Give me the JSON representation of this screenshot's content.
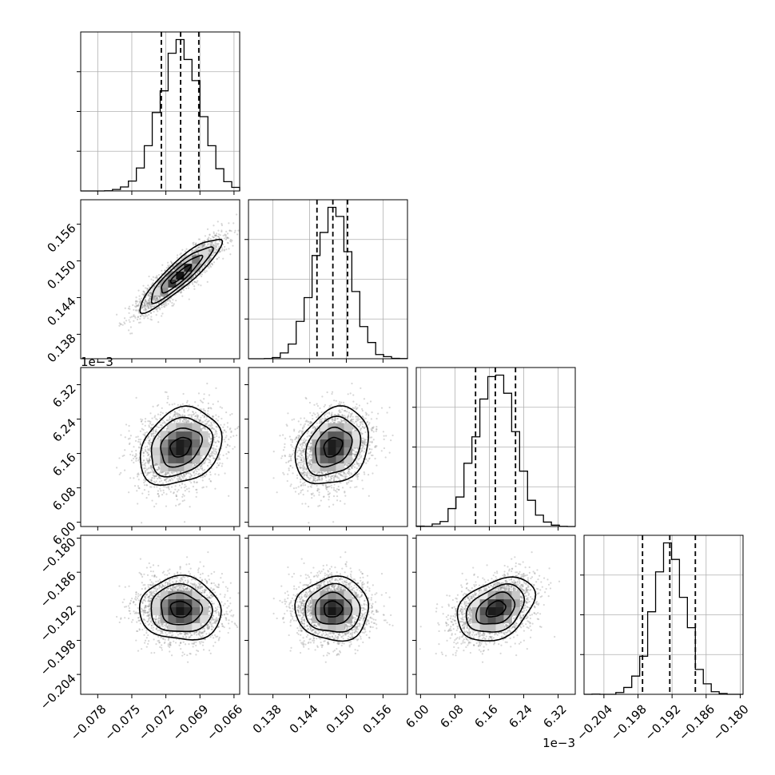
{
  "chart_data": {
    "type": "corner",
    "parameters": [
      {
        "index": 0,
        "range": [
          -0.0795,
          -0.0655
        ],
        "ticks": [
          -0.078,
          -0.075,
          -0.072,
          -0.069,
          -0.066
        ],
        "tick_labels": [
          "−0.078",
          "−0.075",
          "−0.072",
          "−0.069",
          "−0.066"
        ],
        "offset": "",
        "mean": -0.0707,
        "sigma": 0.0018,
        "quantiles": [
          -0.0724,
          -0.0707,
          -0.0691
        ]
      },
      {
        "index": 1,
        "range": [
          0.134,
          0.16
        ],
        "ticks": [
          0.138,
          0.144,
          0.15,
          0.156
        ],
        "tick_labels": [
          "0.138",
          "0.144",
          "0.150",
          "0.156"
        ],
        "offset": "",
        "mean": 0.1478,
        "sigma": 0.003,
        "quantiles": [
          0.1452,
          0.1478,
          0.1502
        ]
      },
      {
        "index": 2,
        "range": [
          5.99,
          6.36
        ],
        "ticks": [
          6.0,
          6.08,
          6.16,
          6.24,
          6.32
        ],
        "tick_labels": [
          "6.00",
          "6.08",
          "6.16",
          "6.24",
          "6.32"
        ],
        "offset": "1e−3",
        "mean": 6.175,
        "sigma": 0.045,
        "quantiles": [
          6.128,
          6.174,
          6.221
        ]
      },
      {
        "index": 3,
        "range": [
          -0.2075,
          -0.1795
        ],
        "ticks": [
          -0.204,
          -0.198,
          -0.192,
          -0.186,
          -0.18
        ],
        "tick_labels": [
          "−0.204",
          "−0.198",
          "−0.192",
          "−0.186",
          "−0.180"
        ],
        "offset": "",
        "mean": -0.1925,
        "sigma": 0.0028,
        "quantiles": [
          -0.1972,
          -0.1924,
          -0.1879
        ]
      }
    ],
    "correlations": {
      "1,0": 0.9,
      "2,0": 0.25,
      "2,1": 0.25,
      "3,0": -0.05,
      "3,1": 0.0,
      "3,2": 0.35
    },
    "histogram_bins": 20,
    "contour_levels": [
      0.118,
      0.393,
      0.675,
      0.864
    ],
    "grid": true,
    "quantile_line_style": "dashed"
  }
}
